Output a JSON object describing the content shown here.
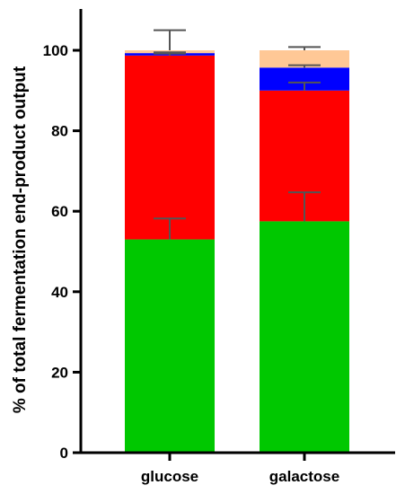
{
  "chart_data": {
    "type": "bar",
    "stacked": true,
    "title": "",
    "xlabel": "",
    "ylabel": "% of total fermentation end-product output",
    "ylim": [
      0,
      110
    ],
    "yticks": [
      0,
      20,
      40,
      60,
      80,
      100
    ],
    "grid": false,
    "legend": "none",
    "categories": [
      "glucose",
      "galactose"
    ],
    "series": [
      {
        "color": "#00c800",
        "values": [
          53,
          57.5
        ],
        "error": [
          5.2,
          7.2
        ]
      },
      {
        "color": "#ff0000",
        "values": [
          45.7,
          32.5
        ],
        "error": [
          0.5,
          2.0
        ]
      },
      {
        "color": "#0000ff",
        "values": [
          0.6,
          5.7
        ],
        "error": [
          0.2,
          0.6
        ]
      },
      {
        "color": "#ffc896",
        "values": [
          0.7,
          4.3
        ],
        "error": [
          5.0,
          0.8
        ]
      }
    ]
  }
}
